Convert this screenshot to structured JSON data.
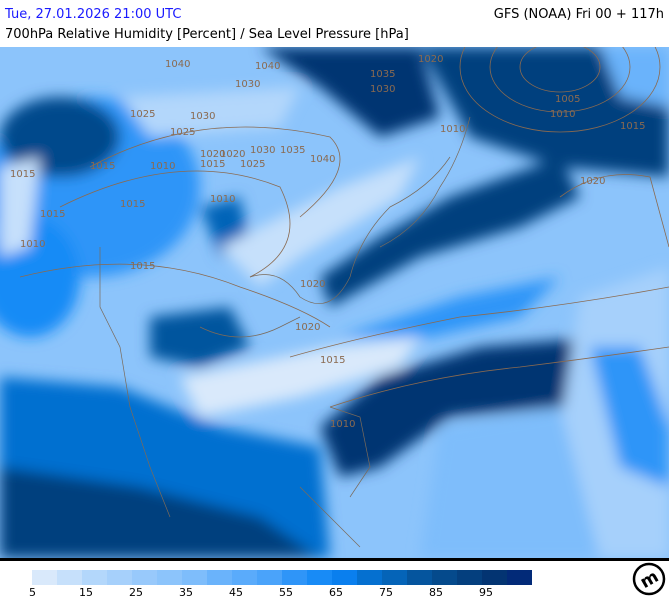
{
  "header": {
    "valid_time": "Tue, 27.01.2026 21:00 UTC",
    "model_run": "GFS (NOAA) Fri 00 + 117h",
    "parameter": "700hPa Relative Humidity [Percent] / Sea Level Pressure [hPa]"
  },
  "colors": {
    "valid_time_text": "#1a1aff",
    "isobar": "#8a6a50",
    "coastline": "#7a6a5a"
  },
  "isobar_labels": [
    "1040",
    "1040",
    "1020",
    "1035",
    "1030",
    "1025",
    "1030",
    "1020",
    "1015",
    "1010",
    "1015",
    "1010",
    "1015",
    "1015",
    "1020",
    "1025",
    "1030",
    "1035",
    "1040",
    "1020",
    "1015",
    "1010",
    "1005",
    "1010",
    "1015",
    "1020",
    "1025",
    "1030",
    "1020",
    "1015",
    "1010",
    "1015",
    "1010"
  ],
  "legend": {
    "unit": "Percent",
    "ticks": [
      "5",
      "15",
      "25",
      "35",
      "45",
      "55",
      "65",
      "75",
      "85",
      "95"
    ],
    "swatches": [
      "#d9e9fb",
      "#c6e0fb",
      "#b3d7fb",
      "#a6d0fb",
      "#98c9fb",
      "#8cc4fb",
      "#7ebdfb",
      "#6ab3fb",
      "#5aabfb",
      "#4aa3fa",
      "#2f95f8",
      "#188bf6",
      "#0a7fee",
      "#0570d0",
      "#0564b8",
      "#05559e",
      "#054a8c",
      "#043f7e",
      "#033472",
      "#022a78"
    ]
  },
  "logo": {
    "text": "m",
    "icon": "meteologix-logo"
  }
}
